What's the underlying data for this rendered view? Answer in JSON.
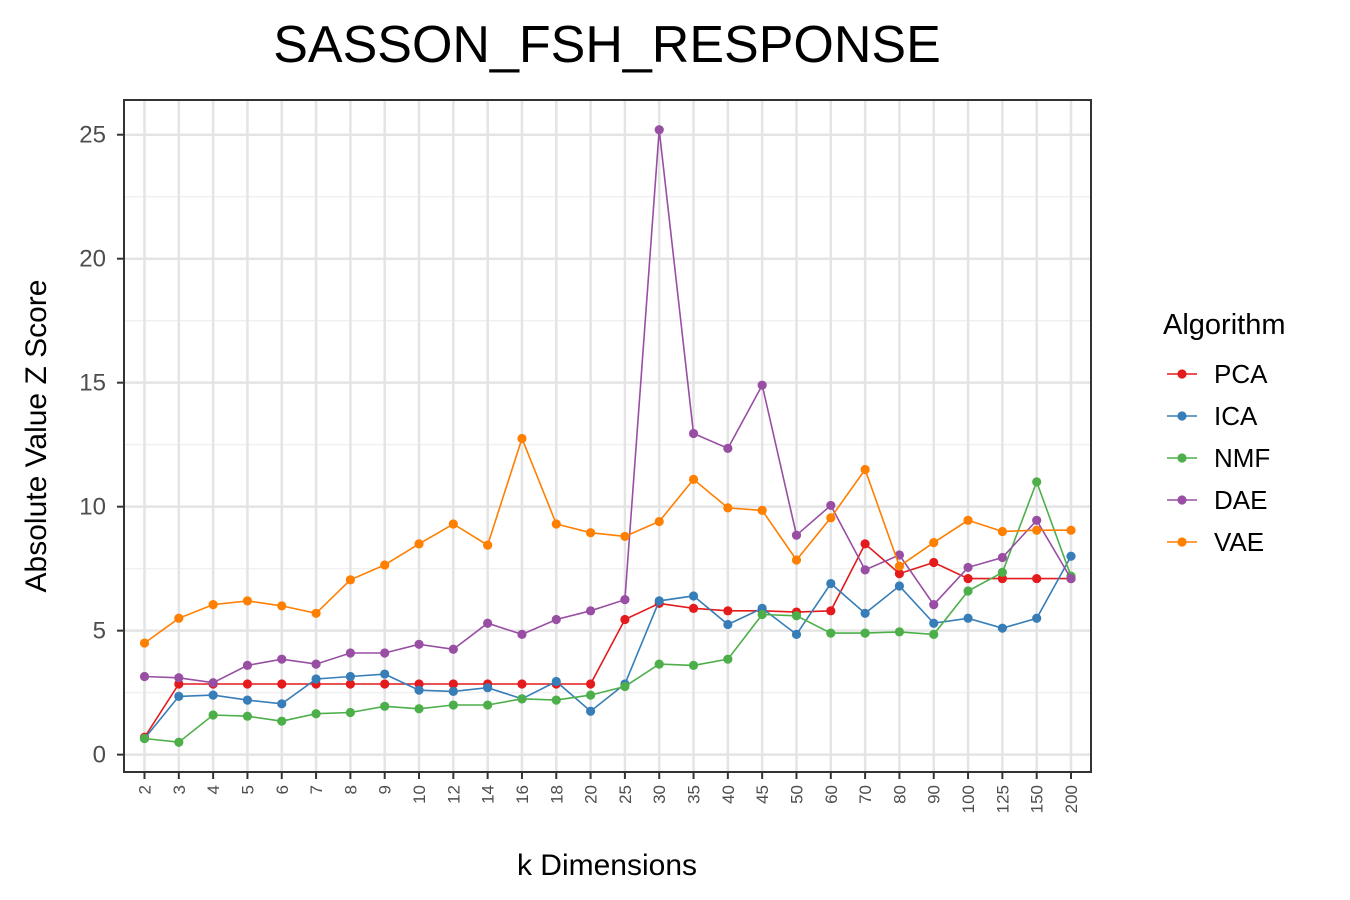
{
  "chart_data": {
    "type": "line",
    "title": "SASSON_FSH_RESPONSE",
    "xlabel": "k Dimensions",
    "ylabel": "Absolute Value Z Score",
    "categories": [
      "2",
      "3",
      "4",
      "5",
      "6",
      "7",
      "8",
      "9",
      "10",
      "12",
      "14",
      "16",
      "18",
      "20",
      "25",
      "30",
      "35",
      "40",
      "45",
      "50",
      "60",
      "70",
      "80",
      "90",
      "100",
      "125",
      "150",
      "200"
    ],
    "ylim": [
      -0.7,
      26.4
    ],
    "yticks": [
      0,
      5,
      10,
      15,
      20,
      25
    ],
    "yticks_labels": [
      "0",
      "5",
      "10",
      "15",
      "20",
      "25"
    ],
    "grid": true,
    "legend_title": "Algorithm",
    "legend_position": "right",
    "series": [
      {
        "name": "PCA",
        "color": "#E41A1C",
        "values": [
          0.7,
          2.85,
          2.85,
          2.85,
          2.85,
          2.85,
          2.85,
          2.85,
          2.85,
          2.85,
          2.85,
          2.85,
          2.85,
          2.85,
          5.45,
          6.1,
          5.9,
          5.8,
          5.8,
          5.75,
          5.8,
          8.5,
          7.3,
          7.75,
          7.1,
          7.1,
          7.1,
          7.1
        ]
      },
      {
        "name": "ICA",
        "color": "#377EB8",
        "values": [
          0.65,
          2.35,
          2.4,
          2.2,
          2.05,
          3.05,
          3.15,
          3.25,
          2.6,
          2.55,
          2.7,
          2.25,
          2.95,
          1.75,
          2.85,
          6.2,
          6.4,
          5.25,
          5.9,
          4.85,
          6.9,
          5.7,
          6.8,
          5.3,
          5.5,
          5.1,
          5.5,
          8.0
        ]
      },
      {
        "name": "NMF",
        "color": "#4DAF4A",
        "values": [
          0.65,
          0.5,
          1.6,
          1.55,
          1.35,
          1.65,
          1.7,
          1.95,
          1.85,
          2.0,
          2.0,
          2.25,
          2.2,
          2.4,
          2.75,
          3.65,
          3.6,
          3.85,
          5.65,
          5.6,
          4.9,
          4.9,
          4.95,
          4.85,
          6.6,
          7.35,
          11.0,
          7.2
        ]
      },
      {
        "name": "DAE",
        "color": "#984EA3",
        "values": [
          3.15,
          3.1,
          2.9,
          3.6,
          3.85,
          3.65,
          4.1,
          4.1,
          4.45,
          4.25,
          5.3,
          4.85,
          5.45,
          5.8,
          6.25,
          25.2,
          12.95,
          12.35,
          14.9,
          8.85,
          10.05,
          7.45,
          8.05,
          6.05,
          7.55,
          7.95,
          9.45,
          7.1
        ]
      },
      {
        "name": "VAE",
        "color": "#FF7F00",
        "values": [
          4.5,
          5.5,
          6.05,
          6.2,
          6.0,
          5.7,
          7.05,
          7.65,
          8.5,
          9.3,
          8.45,
          12.75,
          9.3,
          8.95,
          8.8,
          9.4,
          11.1,
          9.95,
          9.85,
          7.85,
          9.55,
          11.5,
          7.6,
          8.55,
          9.45,
          9.0,
          9.05,
          9.05
        ]
      }
    ]
  }
}
